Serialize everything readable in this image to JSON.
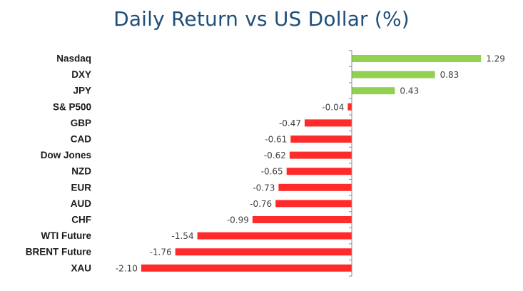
{
  "chart_data": {
    "type": "bar",
    "orientation": "horizontal",
    "title": "Daily Return vs US Dollar (%)",
    "xlabel": "",
    "ylabel": "",
    "categories": [
      "Nasdaq",
      "DXY",
      "JPY",
      "S& P500",
      "GBP",
      "CAD",
      "Dow Jones",
      "NZD",
      "EUR",
      "AUD",
      "CHF",
      "WTI Future",
      "BRENT Future",
      "XAU"
    ],
    "values": [
      1.29,
      0.83,
      0.43,
      -0.04,
      -0.47,
      -0.61,
      -0.62,
      -0.65,
      -0.73,
      -0.76,
      -0.99,
      -1.54,
      -1.76,
      -2.1
    ],
    "value_labels": [
      "1.29",
      "0.83",
      "0.43",
      "-0.04",
      "-0.47",
      "-0.61",
      "-0.62",
      "-0.65",
      "-0.73",
      "-0.76",
      "-0.99",
      "-1.54",
      "-1.76",
      "-2.10"
    ],
    "xlim": [
      -2.1,
      1.29
    ],
    "grid": false,
    "legend": "none",
    "colors": {
      "positive": "#92d050",
      "negative": "#ff2a2a",
      "title": "#1f4e79"
    }
  }
}
